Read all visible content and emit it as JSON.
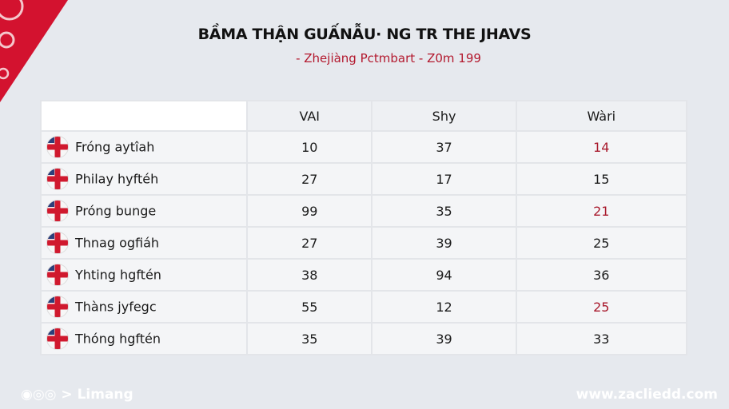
{
  "title": "BẦMA THẬN GUẤNẪU· NG TR THE JHAVS",
  "subtitle": "- Zhejiàng Pctmbart - Z0m 199",
  "accent_color": "#b3182d",
  "table": {
    "headers": [
      "",
      "VAI",
      "Shy",
      "Wàri"
    ],
    "rows": [
      {
        "name": "Fróng aytîah",
        "flag": "england-flag-icon",
        "vai": "10",
        "shy": "37",
        "wari": "14",
        "wari_highlight": true
      },
      {
        "name": "Philay hyftéh",
        "flag": "england-flag-icon",
        "vai": "27",
        "shy": "17",
        "wari": "15",
        "wari_highlight": false
      },
      {
        "name": "Próng bunge",
        "flag": "england-flag-icon",
        "vai": "99",
        "shy": "35",
        "wari": "21",
        "wari_highlight": true
      },
      {
        "name": "Thnag ogfiáh",
        "flag": "england-flag-icon",
        "vai": "27",
        "shy": "39",
        "wari": "25",
        "wari_highlight": false
      },
      {
        "name": "Yhting hgftén",
        "flag": "england-flag-icon",
        "vai": "38",
        "shy": "94",
        "wari": "36",
        "wari_highlight": false
      },
      {
        "name": "Thàns jyfegc",
        "flag": "england-flag-icon",
        "vai": "55",
        "shy": "12",
        "wari": "25",
        "wari_highlight": true
      },
      {
        "name": "Thóng hgftén",
        "flag": "england-flag-icon",
        "vai": "35",
        "shy": "39",
        "wari": "33",
        "wari_highlight": false
      }
    ]
  },
  "footer": {
    "left": "◉◎◎ > Limang",
    "right": "www.zacliedd.com"
  }
}
